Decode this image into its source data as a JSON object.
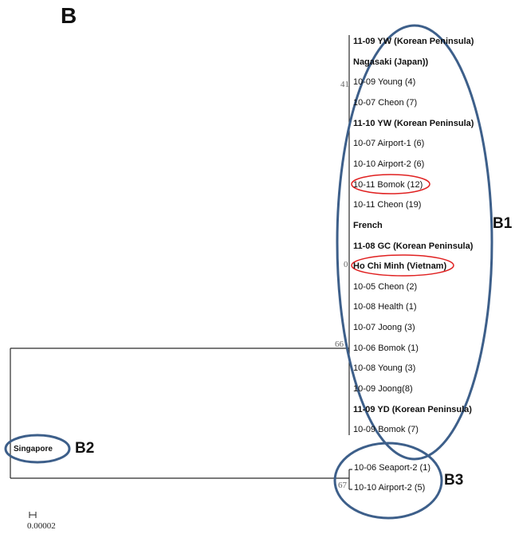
{
  "panel_letter": "B",
  "colors": {
    "tree_line": "#2b2b2b",
    "clade_ellipse": "#3d5f8a",
    "highlight_ellipse": "#e02020"
  },
  "leaves_b1": [
    {
      "label": "11-09 YW (Korean Peninsula)",
      "bold": true
    },
    {
      "label": "Nagasaki (Japan))",
      "bold": true
    },
    {
      "label": "10-09 Young (4)",
      "bold": false
    },
    {
      "label": "10-07 Cheon (7)",
      "bold": false
    },
    {
      "label": "11-10 YW (Korean Peninsula)",
      "bold": true
    },
    {
      "label": "10-07 Airport-1 (6)",
      "bold": false
    },
    {
      "label": "10-10 Airport-2 (6)",
      "bold": false
    },
    {
      "label": "10-11 Bomok (12)",
      "bold": false,
      "highlighted": true
    },
    {
      "label": "10-11 Cheon (19)",
      "bold": false
    },
    {
      "label": "French",
      "bold": true
    },
    {
      "label": "11-08 GC (Korean Peninsula)",
      "bold": true
    },
    {
      "label": "Ho Chi Minh (Vietnam)",
      "bold": true,
      "highlighted": true
    },
    {
      "label": "10-05 Cheon (2)",
      "bold": false
    },
    {
      "label": "10-08 Health (1)",
      "bold": false
    },
    {
      "label": "10-07 Joong (3)",
      "bold": false
    },
    {
      "label": "10-06 Bomok (1)",
      "bold": false
    },
    {
      "label": "10-08 Young (3)",
      "bold": false
    },
    {
      "label": "10-09 Joong(8)",
      "bold": false
    },
    {
      "label": "11-09 YD (Korean Peninsula)",
      "bold": true
    },
    {
      "label": "10-09 Bomok (7)",
      "bold": false
    }
  ],
  "leaves_b3": [
    {
      "label": "10-06 Seaport-2 (1)",
      "bold": false
    },
    {
      "label": "10-10 Airport-2 (5)",
      "bold": false
    }
  ],
  "outgroup": {
    "label": "Singapore"
  },
  "support_values": {
    "node_41": "41",
    "node_0": "0",
    "node_66": "66",
    "node_67": "67"
  },
  "clade_labels": {
    "b1": "B1",
    "b2": "B2",
    "b3": "B3"
  },
  "scale_bar": {
    "value": "0.00002"
  }
}
